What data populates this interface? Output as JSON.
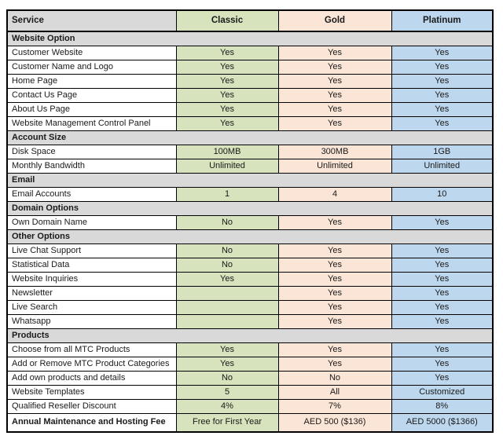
{
  "table": {
    "columns": [
      {
        "label": "Service",
        "color": "#d9d9d9"
      },
      {
        "label": "Classic",
        "color": "#d6e3bc"
      },
      {
        "label": "Gold",
        "color": "#fbe5d6"
      },
      {
        "label": "Platinum",
        "color": "#bdd7ee"
      }
    ],
    "section_color": "#d9d9d9",
    "sections": [
      {
        "title": "Website Option",
        "rows": [
          {
            "label": "Customer Website",
            "values": [
              "Yes",
              "Yes",
              "Yes"
            ]
          },
          {
            "label": "Customer Name and Logo",
            "values": [
              "Yes",
              "Yes",
              "Yes"
            ]
          },
          {
            "label": "Home Page",
            "values": [
              "Yes",
              "Yes",
              "Yes"
            ]
          },
          {
            "label": "Contact Us Page",
            "values": [
              "Yes",
              "Yes",
              "Yes"
            ]
          },
          {
            "label": "About Us Page",
            "values": [
              "Yes",
              "Yes",
              "Yes"
            ]
          },
          {
            "label": "Website Management Control Panel",
            "values": [
              "Yes",
              "Yes",
              "Yes"
            ]
          }
        ]
      },
      {
        "title": "Account Size",
        "rows": [
          {
            "label": "Disk Space",
            "values": [
              "100MB",
              "300MB",
              "1GB"
            ]
          },
          {
            "label": "Monthly Bandwidth",
            "values": [
              "Unlimited",
              "Unlimited",
              "Unlimited"
            ]
          }
        ]
      },
      {
        "title": "Email",
        "rows": [
          {
            "label": "Email Accounts",
            "values": [
              "1",
              "4",
              "10"
            ]
          }
        ]
      },
      {
        "title": "Domain Options",
        "rows": [
          {
            "label": "Own Domain Name",
            "values": [
              "No",
              "Yes",
              "Yes"
            ]
          }
        ]
      },
      {
        "title": "Other Options",
        "rows": [
          {
            "label": "Live Chat Support",
            "values": [
              "No",
              "Yes",
              "Yes"
            ]
          },
          {
            "label": "Statistical Data",
            "values": [
              "No",
              "Yes",
              "Yes"
            ]
          },
          {
            "label": "Website Inquiries",
            "values": [
              "Yes",
              "Yes",
              "Yes"
            ]
          },
          {
            "label": "Newsletter",
            "values": [
              "",
              "Yes",
              "Yes"
            ]
          },
          {
            "label": "Live Search",
            "values": [
              "",
              "Yes",
              "Yes"
            ]
          },
          {
            "label": "Whatsapp",
            "values": [
              "",
              "Yes",
              "Yes"
            ]
          }
        ]
      },
      {
        "title": "Products",
        "rows": [
          {
            "label": "Choose from all MTC Products",
            "values": [
              "Yes",
              "Yes",
              "Yes"
            ]
          },
          {
            "label": "Add or Remove MTC Product Categories",
            "values": [
              "Yes",
              "Yes",
              "Yes"
            ]
          },
          {
            "label": "Add own products and details",
            "values": [
              "No",
              "No",
              "Yes"
            ]
          },
          {
            "label": "Website Templates",
            "values": [
              "5",
              "All",
              "Customized"
            ]
          },
          {
            "label": "Qualified Reseller Discount",
            "values": [
              "4%",
              "7%",
              "8%"
            ]
          }
        ]
      }
    ],
    "footer": {
      "label": "Annual Maintenance and Hosting Fee",
      "values": [
        "Free for First Year",
        "AED 500 ($136)",
        "AED 5000 ($1366)"
      ]
    }
  }
}
